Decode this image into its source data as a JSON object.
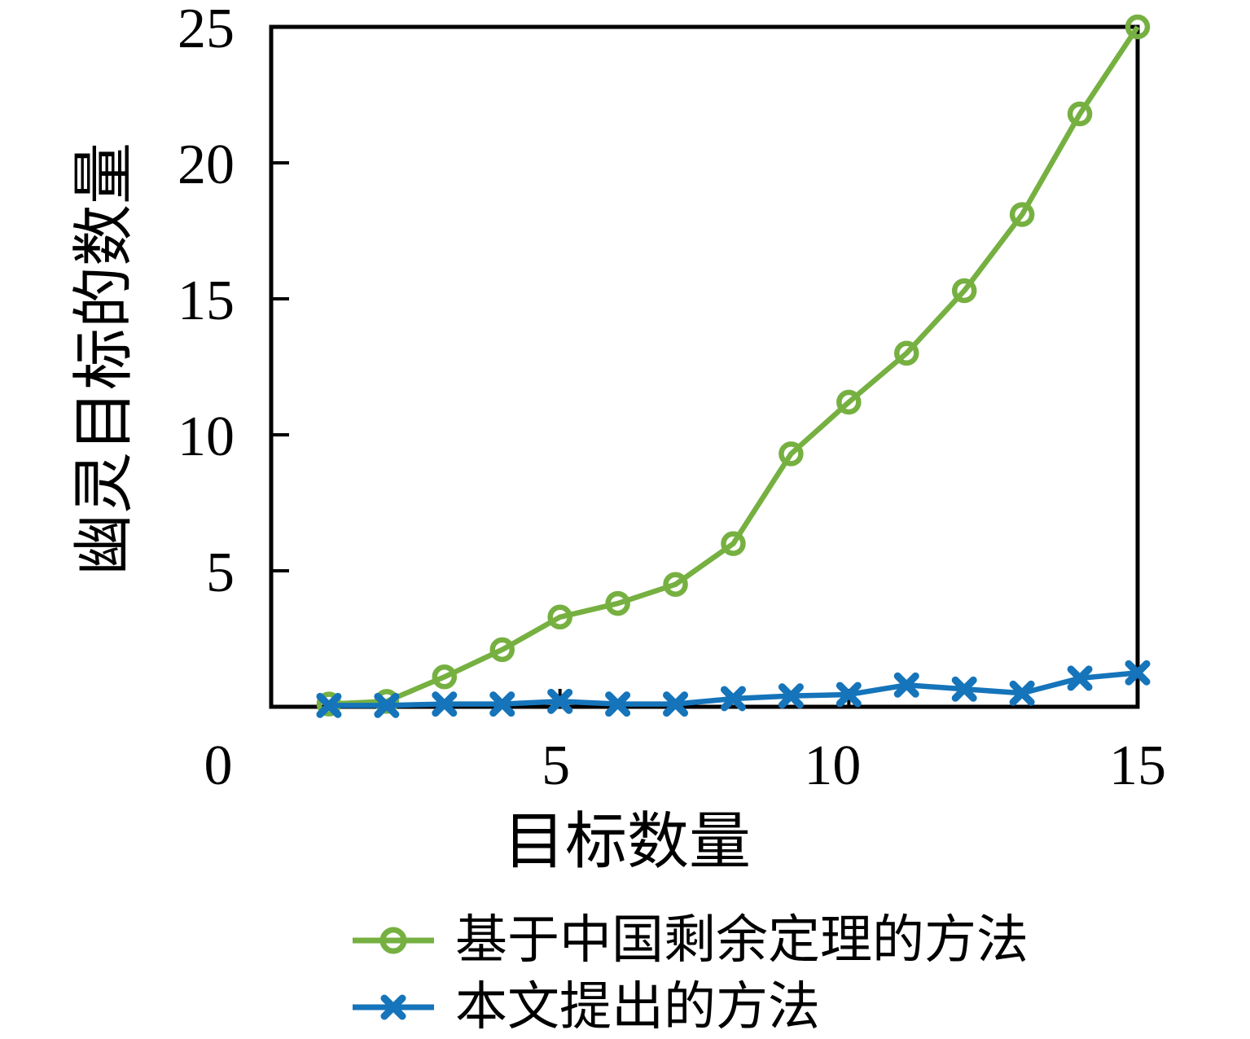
{
  "chart_data": {
    "type": "line",
    "title": "",
    "xlabel": "目标数量",
    "ylabel": "幽灵目标的数量",
    "xlim": [
      0,
      15
    ],
    "ylim": [
      0,
      25
    ],
    "xticks": [
      "0",
      "5",
      "10",
      "15"
    ],
    "xtick_values": [
      0,
      5,
      10,
      15
    ],
    "yticks": [
      "5",
      "10",
      "15",
      "20",
      "25"
    ],
    "ytick_values": [
      5,
      10,
      15,
      20,
      25
    ],
    "grid": false,
    "legend_position": "below-left",
    "x": [
      1,
      2,
      3,
      4,
      5,
      6,
      7,
      8,
      9,
      10,
      11,
      12,
      13,
      14,
      15
    ],
    "series": [
      {
        "name": "基于中国剩余定理的方法",
        "marker": "circle",
        "color": "#76b041",
        "values": [
          0.1,
          0.2,
          1.1,
          2.1,
          3.3,
          3.8,
          4.5,
          6.0,
          9.3,
          11.2,
          13.0,
          15.3,
          18.1,
          21.8,
          25.0
        ]
      },
      {
        "name": "本文提出的方法",
        "marker": "x",
        "color": "#1574ba",
        "values": [
          0.05,
          0.05,
          0.1,
          0.1,
          0.2,
          0.1,
          0.1,
          0.3,
          0.4,
          0.45,
          0.8,
          0.65,
          0.5,
          1.05,
          1.25
        ]
      }
    ]
  },
  "colors": {
    "axis": "#000000",
    "background": "#ffffff"
  }
}
